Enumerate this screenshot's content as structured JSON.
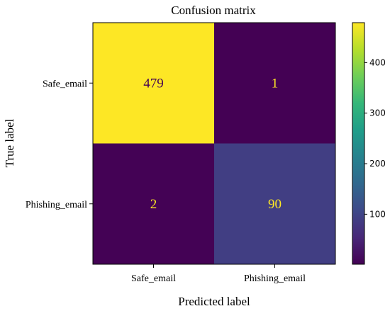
{
  "chart_data": {
    "type": "heatmap",
    "title": "Confusion matrix",
    "xlabel": "Predicted label",
    "ylabel": "True label",
    "x_categories": [
      "Safe_email",
      "Phishing_email"
    ],
    "y_categories": [
      "Safe_email",
      "Phishing_email"
    ],
    "values": [
      [
        479,
        1
      ],
      [
        2,
        90
      ]
    ],
    "colormap": "viridis",
    "colorbar": {
      "range": [
        1,
        479
      ],
      "ticks": [
        100,
        200,
        300,
        400
      ],
      "tick_labels": [
        "100",
        "200",
        "300",
        "400"
      ]
    },
    "text_colors": {
      "on_dark": "#fde725",
      "on_light": "#440154"
    },
    "grid": false
  }
}
